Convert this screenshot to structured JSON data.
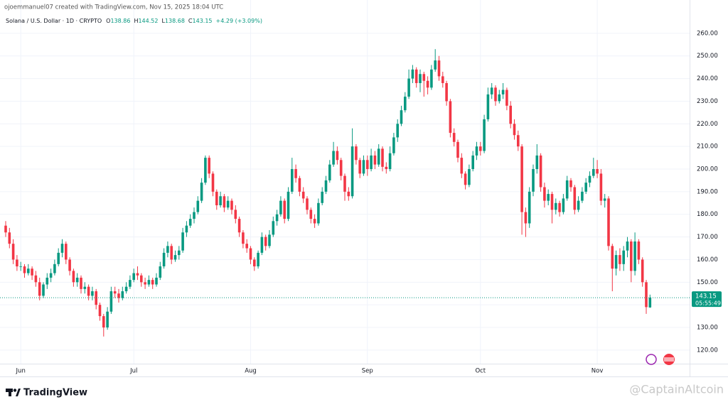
{
  "header": {
    "credit": "ojoemmanuel07 created with TradingView.com, Nov 15, 2025 18:04 UTC"
  },
  "chart_data": {
    "type": "candlestick",
    "title": "Solana / U.S. Dollar · 1D · CRYPTO",
    "ohlc_letters": [
      "O",
      "H",
      "L",
      "C"
    ],
    "change": "+4.29 (+3.09%)",
    "countdown": "05:55:49",
    "up_color": "#089981",
    "down_color": "#f23645",
    "grid": true,
    "ylim": [
      114,
      265.3
    ],
    "yticks": [
      {
        "value": 120,
        "label": "120.00"
      },
      {
        "value": 130,
        "label": "130.00"
      },
      {
        "value": 140,
        "label": "140.00"
      },
      {
        "value": 150,
        "label": "150.00"
      },
      {
        "value": 160,
        "label": "160.00"
      },
      {
        "value": 170,
        "label": "170.00"
      },
      {
        "value": 180,
        "label": "180.00"
      },
      {
        "value": 190,
        "label": "190.00"
      },
      {
        "value": 200,
        "label": "200.00"
      },
      {
        "value": 210,
        "label": "210.00"
      },
      {
        "value": 220,
        "label": "220.00"
      },
      {
        "value": 230,
        "label": "230.00"
      },
      {
        "value": 240,
        "label": "240.00"
      },
      {
        "value": 250,
        "label": "250.00"
      },
      {
        "value": 260,
        "label": "260.00"
      }
    ],
    "categories": [
      null,
      null,
      null,
      null,
      "Jun",
      null,
      null,
      null,
      null,
      null,
      null,
      null,
      null,
      null,
      null,
      null,
      null,
      null,
      null,
      null,
      null,
      null,
      null,
      null,
      null,
      null,
      null,
      null,
      null,
      null,
      null,
      null,
      null,
      null,
      "Jul",
      null,
      null,
      null,
      null,
      null,
      null,
      null,
      null,
      null,
      null,
      null,
      null,
      null,
      null,
      null,
      null,
      null,
      null,
      null,
      null,
      null,
      null,
      null,
      null,
      null,
      null,
      null,
      null,
      null,
      null,
      "Aug",
      null,
      null,
      null,
      null,
      null,
      null,
      null,
      null,
      null,
      null,
      null,
      null,
      null,
      null,
      null,
      null,
      null,
      null,
      null,
      null,
      null,
      null,
      null,
      null,
      null,
      null,
      null,
      null,
      null,
      null,
      "Sep",
      null,
      null,
      null,
      null,
      null,
      null,
      null,
      null,
      null,
      null,
      null,
      null,
      null,
      null,
      null,
      null,
      null,
      null,
      null,
      null,
      null,
      null,
      null,
      null,
      null,
      null,
      null,
      null,
      null,
      "Oct",
      null,
      null,
      null,
      null,
      null,
      null,
      null,
      null,
      null,
      null,
      null,
      null,
      null,
      null,
      null,
      null,
      null,
      null,
      null,
      null,
      null,
      null,
      null,
      null,
      null,
      null,
      null,
      null,
      null,
      null,
      "Nov",
      null,
      null,
      null,
      null,
      null,
      null,
      null,
      null,
      null,
      null,
      null,
      null,
      null,
      null
    ],
    "open": [
      175,
      172,
      167,
      160,
      157,
      157,
      154,
      156,
      153,
      150,
      144,
      149,
      152,
      154,
      158,
      163,
      167,
      160,
      155,
      150,
      152,
      147,
      148,
      144,
      146,
      140,
      135,
      130,
      137,
      146,
      145,
      143,
      146,
      148,
      151,
      154,
      153,
      150,
      149,
      151,
      149,
      152,
      157,
      163,
      166,
      160,
      162,
      164,
      172,
      175,
      178,
      181,
      186,
      194,
      205,
      198,
      190,
      184,
      188,
      183,
      186,
      182,
      178,
      172,
      167,
      165,
      160,
      157,
      163,
      170,
      166,
      171,
      177,
      180,
      186,
      178,
      190,
      200,
      196,
      190,
      187,
      182,
      178,
      176,
      185,
      190,
      195,
      202,
      208,
      204,
      197,
      190,
      188,
      210,
      204,
      198,
      204,
      200,
      206,
      202,
      209,
      201,
      200,
      207,
      214,
      220,
      226,
      232,
      240,
      244,
      238,
      242,
      239,
      236,
      244,
      248,
      241,
      238,
      230,
      216,
      212,
      205,
      198,
      193,
      200,
      206,
      210,
      208,
      222,
      233,
      236,
      230,
      233,
      235,
      228,
      220,
      215,
      210,
      181,
      176,
      190,
      200,
      206,
      192,
      186,
      189,
      182,
      185,
      181,
      187,
      195,
      192,
      182,
      186,
      190,
      194,
      197,
      200,
      198,
      186,
      187,
      166,
      156,
      162,
      158,
      164,
      168,
      155,
      168,
      160,
      150,
      138.86
    ],
    "high": [
      177,
      174,
      169,
      162,
      159,
      158,
      158,
      157,
      155,
      152,
      150,
      154,
      156,
      160,
      165,
      169,
      168,
      161,
      156,
      154,
      153,
      150,
      149,
      148,
      147,
      141,
      136,
      139,
      148,
      148,
      147,
      148,
      150,
      153,
      156,
      157,
      154,
      152,
      153,
      152,
      154,
      159,
      165,
      168,
      167,
      164,
      166,
      174,
      177,
      180,
      183,
      188,
      196,
      206,
      206,
      199,
      191,
      190,
      189,
      188,
      187,
      184,
      179,
      173,
      169,
      166,
      161,
      164,
      172,
      171,
      173,
      179,
      182,
      188,
      187,
      192,
      205,
      202,
      197,
      192,
      188,
      183,
      180,
      187,
      192,
      197,
      204,
      212,
      210,
      205,
      198,
      192,
      218,
      211,
      205,
      206,
      206,
      209,
      208,
      211,
      210,
      203,
      210,
      216,
      222,
      228,
      234,
      244,
      246,
      245,
      244,
      243,
      241,
      246,
      253,
      250,
      243,
      239,
      231,
      218,
      213,
      207,
      199,
      202,
      208,
      212,
      212,
      224,
      236,
      238,
      237,
      235,
      238,
      236,
      230,
      222,
      217,
      211,
      183,
      192,
      202,
      211,
      207,
      194,
      191,
      190,
      187,
      186,
      189,
      197,
      196,
      193,
      188,
      192,
      196,
      199,
      205,
      204,
      200,
      189,
      188,
      167,
      164,
      165,
      166,
      170,
      169,
      172,
      169,
      161,
      151,
      144.52
    ],
    "low": [
      170,
      165,
      158,
      155,
      155,
      152,
      153,
      151,
      148,
      142,
      143,
      147,
      150,
      153,
      157,
      161,
      158,
      153,
      148,
      148,
      145,
      145,
      142,
      142,
      138,
      133,
      126,
      129,
      136,
      143,
      141,
      142,
      145,
      147,
      150,
      151,
      148,
      147,
      148,
      147,
      148,
      151,
      156,
      161,
      158,
      159,
      160,
      163,
      170,
      174,
      176,
      180,
      185,
      193,
      196,
      188,
      182,
      183,
      181,
      182,
      180,
      176,
      170,
      165,
      163,
      158,
      155,
      156,
      162,
      164,
      165,
      170,
      175,
      179,
      176,
      177,
      189,
      194,
      188,
      185,
      180,
      176,
      174,
      175,
      184,
      189,
      194,
      201,
      202,
      195,
      186,
      186,
      187,
      202,
      196,
      197,
      197,
      199,
      200,
      201,
      199,
      198,
      199,
      206,
      212,
      219,
      225,
      231,
      238,
      236,
      234,
      232,
      233,
      235,
      243,
      239,
      236,
      228,
      214,
      210,
      203,
      196,
      191,
      192,
      199,
      204,
      206,
      207,
      221,
      231,
      228,
      229,
      231,
      226,
      218,
      213,
      208,
      171,
      170,
      174,
      188,
      198,
      190,
      183,
      184,
      176,
      180,
      179,
      180,
      186,
      190,
      180,
      181,
      185,
      189,
      192,
      196,
      196,
      184,
      183,
      164,
      146,
      153,
      155,
      155,
      161,
      150,
      153,
      158,
      148,
      136,
      138.68
    ],
    "close": [
      172,
      167,
      160,
      157,
      157,
      154,
      156,
      153,
      150,
      144,
      149,
      152,
      154,
      158,
      163,
      167,
      160,
      155,
      150,
      152,
      147,
      148,
      144,
      146,
      140,
      135,
      130,
      137,
      146,
      145,
      143,
      146,
      148,
      151,
      154,
      153,
      150,
      149,
      151,
      149,
      152,
      157,
      163,
      166,
      160,
      162,
      164,
      172,
      175,
      178,
      181,
      186,
      194,
      205,
      198,
      190,
      184,
      188,
      183,
      186,
      182,
      178,
      172,
      167,
      165,
      160,
      157,
      163,
      170,
      166,
      171,
      177,
      180,
      186,
      178,
      190,
      200,
      196,
      190,
      187,
      182,
      178,
      176,
      185,
      190,
      195,
      202,
      208,
      204,
      197,
      190,
      188,
      210,
      204,
      198,
      204,
      200,
      206,
      202,
      209,
      201,
      200,
      207,
      214,
      220,
      226,
      232,
      240,
      244,
      238,
      242,
      239,
      236,
      244,
      248,
      241,
      238,
      230,
      216,
      212,
      205,
      198,
      193,
      200,
      206,
      210,
      208,
      222,
      233,
      236,
      230,
      233,
      235,
      228,
      220,
      215,
      210,
      181,
      176,
      190,
      200,
      206,
      192,
      186,
      189,
      182,
      185,
      181,
      187,
      195,
      192,
      182,
      186,
      190,
      194,
      197,
      200,
      198,
      186,
      187,
      166,
      156,
      162,
      158,
      164,
      168,
      155,
      168,
      160,
      150,
      139,
      143.15
    ]
  },
  "footer": {
    "brand": "TradingView",
    "watermark": "@CaptainAltcoin"
  }
}
